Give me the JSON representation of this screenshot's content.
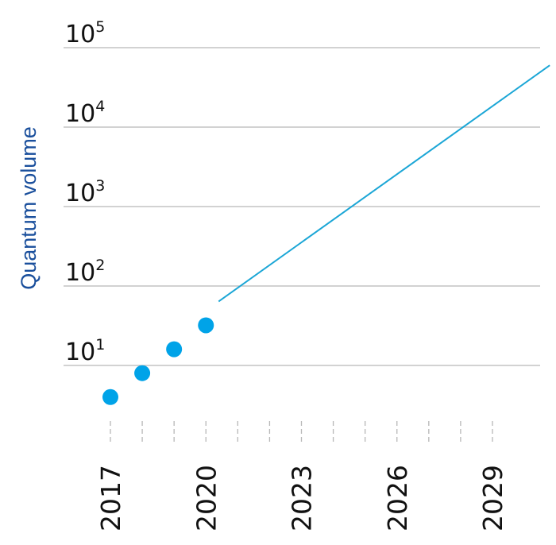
{
  "chart_data": {
    "type": "scatter",
    "title": "",
    "xlabel": "",
    "ylabel": "Quantum volume",
    "y_scale": "log",
    "y_exponent_base": "10",
    "ylim": [
      0.5,
      100000
    ],
    "xlim": [
      2016.5,
      2030.9
    ],
    "y_ticks": [
      {
        "exp": "1",
        "value": 10
      },
      {
        "exp": "2",
        "value": 100
      },
      {
        "exp": "3",
        "value": 1000
      },
      {
        "exp": "4",
        "value": 10000
      },
      {
        "exp": "5",
        "value": 100000
      }
    ],
    "x_tick_labels": [
      "2017",
      "2020",
      "2023",
      "2026",
      "2029"
    ],
    "x_minor_ticks": [
      2017,
      2018,
      2019,
      2020,
      2021,
      2022,
      2023,
      2024,
      2025,
      2026,
      2027,
      2028,
      2029
    ],
    "grid": true,
    "series": [
      {
        "type": "scatter",
        "x": [
          2017,
          2018,
          2019,
          2020
        ],
        "y": [
          4,
          8,
          16,
          32
        ]
      },
      {
        "type": "line",
        "x": [
          2020.4,
          2030.8
        ],
        "y": [
          64,
          60000
        ]
      }
    ],
    "colors": {
      "points": "#00a3e8",
      "trend_line": "#1ba6d6",
      "ylabel": "#1a4f9c",
      "grid": "#b8b8b8",
      "text": "#111111"
    }
  }
}
